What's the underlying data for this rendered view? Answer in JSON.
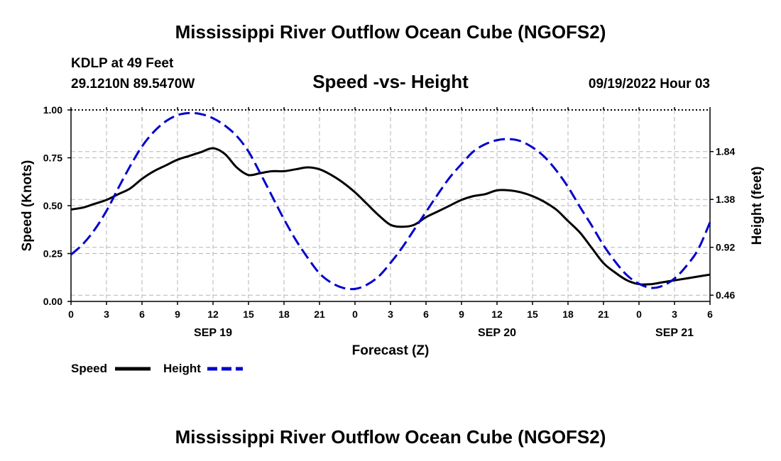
{
  "chart_data": {
    "type": "line",
    "title": "Mississippi River Outflow Ocean Cube (NGOFS2)",
    "station": "KDLP at 49 Feet",
    "location": "29.1210N  89.5470W",
    "subtitle": "Speed -vs- Height",
    "datetime": "09/19/2022 Hour 03",
    "xlabel": "Forecast (Z)",
    "ylabel_left": "Speed (Knots)",
    "ylabel_right": "Height (feet)",
    "x_hours_range": [
      0,
      54
    ],
    "x_tick_labels": [
      "0",
      "3",
      "6",
      "9",
      "12",
      "15",
      "18",
      "21",
      "0",
      "3",
      "6",
      "9",
      "12",
      "15",
      "18",
      "21",
      "0",
      "3",
      "6"
    ],
    "date_labels": [
      {
        "label": "SEP 19",
        "hour": 12
      },
      {
        "label": "SEP 20",
        "hour": 36
      },
      {
        "label": "SEP 21",
        "hour": 51
      }
    ],
    "ylim_left": [
      0,
      1.0
    ],
    "yticks_left": [
      "0.00",
      "0.25",
      "0.50",
      "0.75",
      "1.00"
    ],
    "ylim_right": [
      0.4,
      2.24
    ],
    "yticks_right": [
      "0.46",
      "0.92",
      "1.38",
      "1.84"
    ],
    "series": [
      {
        "name": "Speed",
        "axis": "left",
        "color": "#000000",
        "dash": "solid",
        "x": [
          0,
          1,
          2,
          3,
          4,
          5,
          6,
          7,
          8,
          9,
          10,
          11,
          12,
          13,
          14,
          15,
          16,
          17,
          18,
          19,
          20,
          21,
          22,
          23,
          24,
          25,
          26,
          27,
          28,
          29,
          30,
          31,
          32,
          33,
          34,
          35,
          36,
          37,
          38,
          39,
          40,
          41,
          42,
          43,
          44,
          45,
          46,
          47,
          48,
          49,
          50,
          51,
          52,
          53,
          54
        ],
        "values": [
          0.48,
          0.49,
          0.51,
          0.53,
          0.56,
          0.59,
          0.64,
          0.68,
          0.71,
          0.74,
          0.76,
          0.78,
          0.8,
          0.77,
          0.7,
          0.66,
          0.67,
          0.68,
          0.68,
          0.69,
          0.7,
          0.69,
          0.66,
          0.62,
          0.57,
          0.51,
          0.45,
          0.4,
          0.39,
          0.4,
          0.44,
          0.47,
          0.5,
          0.53,
          0.55,
          0.56,
          0.58,
          0.58,
          0.57,
          0.55,
          0.52,
          0.48,
          0.42,
          0.36,
          0.28,
          0.2,
          0.15,
          0.11,
          0.09,
          0.09,
          0.1,
          0.11,
          0.12,
          0.13,
          0.14
        ]
      },
      {
        "name": "Height",
        "axis": "right",
        "color": "#0000cc",
        "dash": "dashed",
        "x": [
          0,
          1,
          2,
          3,
          4,
          5,
          6,
          7,
          8,
          9,
          10,
          11,
          12,
          13,
          14,
          15,
          16,
          17,
          18,
          19,
          20,
          21,
          22,
          23,
          24,
          25,
          26,
          27,
          28,
          29,
          30,
          31,
          32,
          33,
          34,
          35,
          36,
          37,
          38,
          39,
          40,
          41,
          42,
          43,
          44,
          45,
          46,
          47,
          48,
          49,
          50,
          51,
          52,
          53,
          54
        ],
        "values": [
          0.85,
          0.95,
          1.09,
          1.27,
          1.49,
          1.7,
          1.89,
          2.03,
          2.13,
          2.19,
          2.21,
          2.2,
          2.16,
          2.09,
          1.99,
          1.84,
          1.63,
          1.41,
          1.19,
          0.99,
          0.82,
          0.67,
          0.58,
          0.53,
          0.52,
          0.56,
          0.64,
          0.77,
          0.92,
          1.09,
          1.26,
          1.43,
          1.59,
          1.72,
          1.84,
          1.91,
          1.95,
          1.96,
          1.94,
          1.88,
          1.79,
          1.66,
          1.5,
          1.31,
          1.13,
          0.94,
          0.78,
          0.65,
          0.57,
          0.53,
          0.55,
          0.62,
          0.74,
          0.9,
          1.16
        ]
      }
    ],
    "legend": {
      "placement": "bottom-left",
      "entries": [
        {
          "name": "Speed",
          "color": "#000000",
          "dash": "solid"
        },
        {
          "name": "Height",
          "color": "#0000cc",
          "dash": "dashed"
        }
      ]
    },
    "footer_title": "Mississippi River Outflow Ocean Cube (NGOFS2)"
  }
}
